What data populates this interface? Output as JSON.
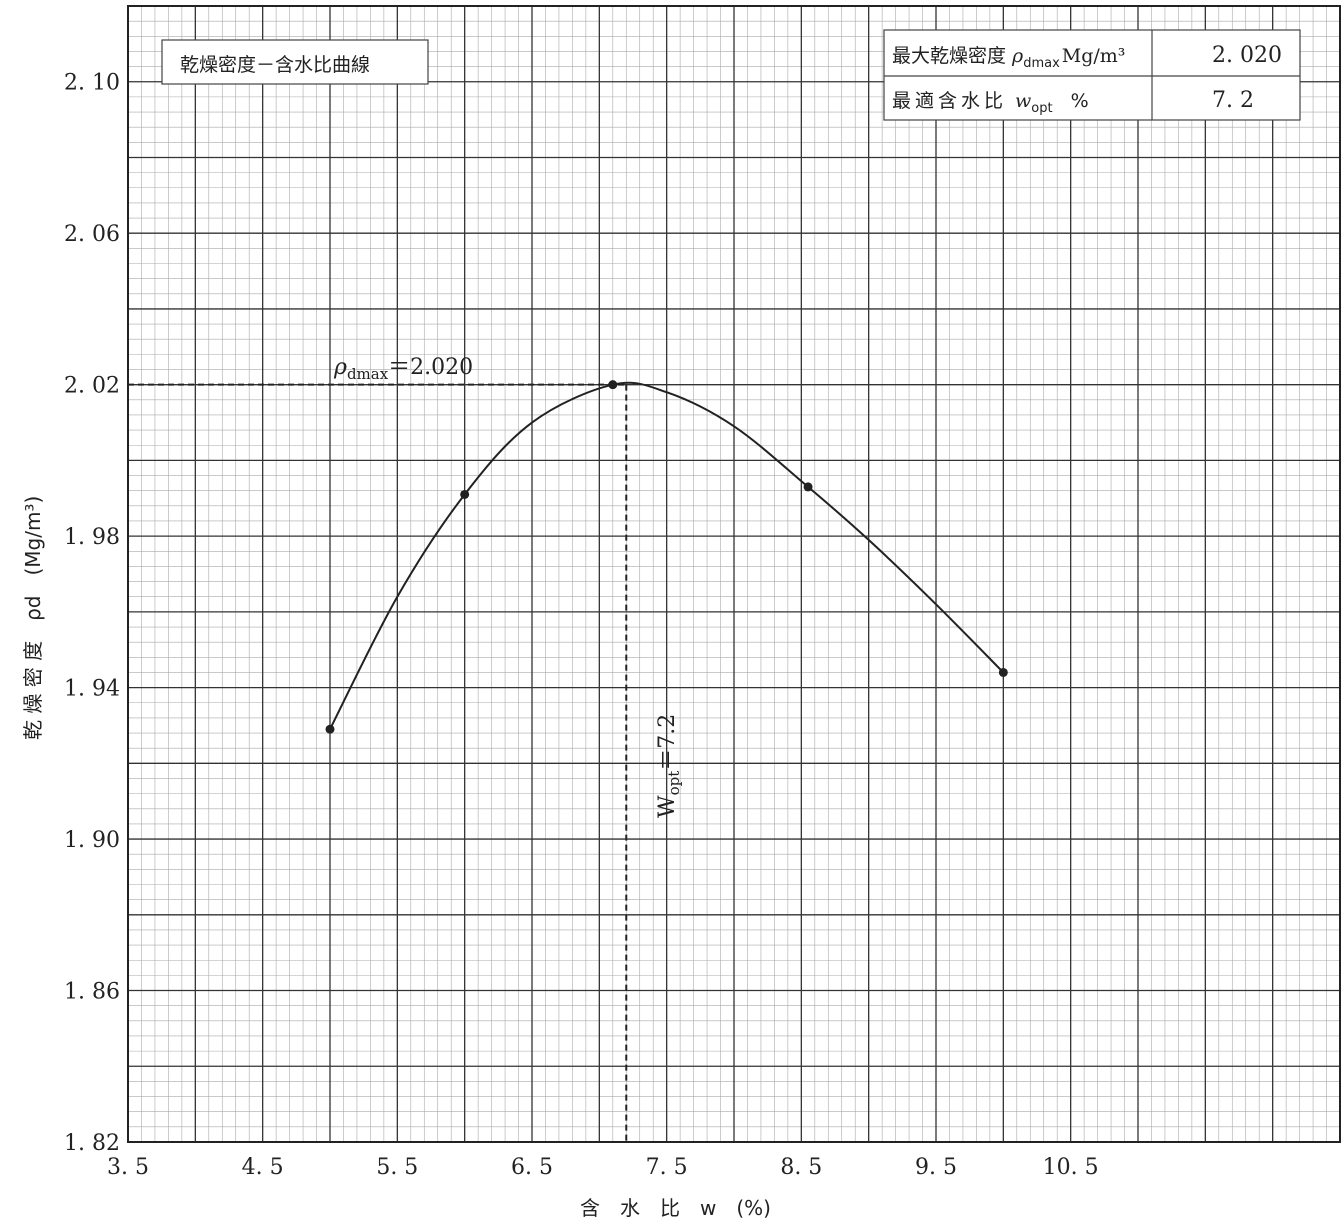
{
  "chart_data": {
    "type": "line",
    "title": "乾燥密度－含水比曲線",
    "xlabel": "含　水　比　w　(%)",
    "ylabel": "乾 燥 密 度　ρd　(Mg/m³)",
    "xlim": [
      3.5,
      12.5
    ],
    "ylim": [
      1.82,
      2.12
    ],
    "xticks": [
      3.5,
      4.5,
      5.5,
      6.5,
      7.5,
      8.5,
      9.5,
      10.5
    ],
    "xtick_labels": [
      "3. 5",
      "4. 5",
      "5. 5",
      "6. 5",
      "7. 5",
      "8. 5",
      "9. 5",
      "10. 5"
    ],
    "yticks": [
      1.82,
      1.86,
      1.9,
      1.94,
      1.98,
      2.02,
      2.06,
      2.1
    ],
    "ytick_labels": [
      "1. 82",
      "1. 86",
      "1. 90",
      "1. 94",
      "1. 98",
      "2. 02",
      "2. 06",
      "2. 10"
    ],
    "grid": true,
    "points": [
      {
        "x": 5.0,
        "y": 1.929
      },
      {
        "x": 6.0,
        "y": 1.991
      },
      {
        "x": 7.1,
        "y": 2.02
      },
      {
        "x": 8.55,
        "y": 1.993
      },
      {
        "x": 10.0,
        "y": 1.944
      }
    ],
    "curve": [
      {
        "x": 5.0,
        "y": 1.929
      },
      {
        "x": 5.5,
        "y": 1.964
      },
      {
        "x": 6.0,
        "y": 1.991
      },
      {
        "x": 6.5,
        "y": 2.01
      },
      {
        "x": 7.1,
        "y": 2.02
      },
      {
        "x": 7.5,
        "y": 2.018
      },
      {
        "x": 8.0,
        "y": 2.009
      },
      {
        "x": 8.55,
        "y": 1.993
      },
      {
        "x": 9.0,
        "y": 1.979
      },
      {
        "x": 9.5,
        "y": 1.962
      },
      {
        "x": 10.0,
        "y": 1.944
      }
    ],
    "max_dry_density": 2.02,
    "optimum_water_content": 7.2,
    "annotations": {
      "rho_label": "ρ",
      "rho_sub": "dmax",
      "rho_value": "＝2.020",
      "wopt_label": "W",
      "wopt_sub": "opt",
      "wopt_value": "＝7.2"
    },
    "result_table": {
      "rows": [
        {
          "label": "最大乾燥密度",
          "symbol": "ρ",
          "symbol_sub": "dmax",
          "unit": "Mg/m³",
          "value": "2. 020"
        },
        {
          "label": "最適含水比",
          "symbol": "w",
          "symbol_sub": "opt",
          "unit": "%",
          "value": "7. 2"
        }
      ]
    }
  }
}
